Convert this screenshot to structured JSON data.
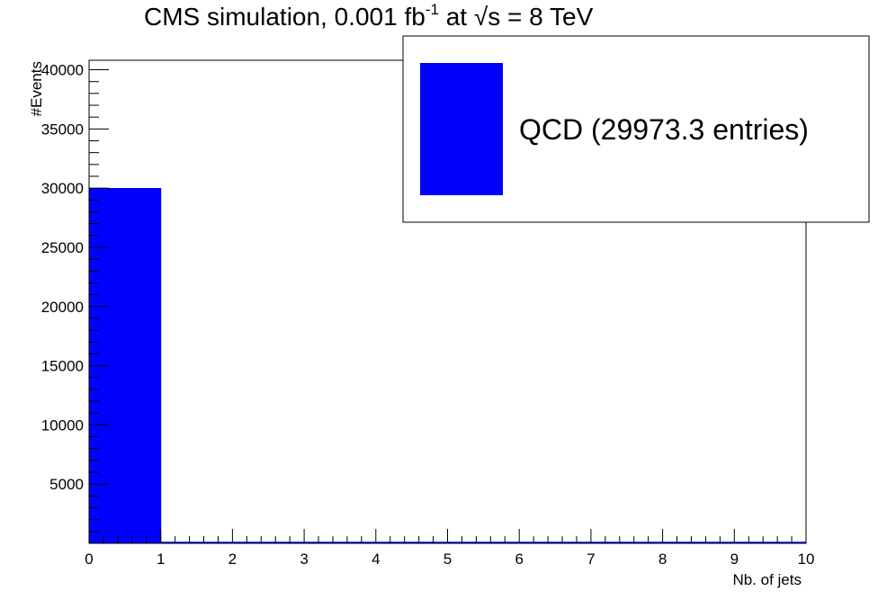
{
  "chart_data": {
    "type": "bar",
    "title": {
      "prefix": "CMS simulation, 0.001 fb",
      "superscript": "-1",
      "middle": " at ",
      "sqrt_symbol": "√",
      "sqrt_arg": "s",
      "suffix": " = 8 TeV"
    },
    "xlabel": "Nb. of jets",
    "ylabel": "#Events",
    "xlim": [
      0,
      10
    ],
    "ylim": [
      0,
      40800
    ],
    "x_ticks": [
      "0",
      "1",
      "2",
      "3",
      "4",
      "5",
      "6",
      "7",
      "8",
      "9",
      "10"
    ],
    "y_ticks": [
      {
        "value": 5000,
        "label": "5000"
      },
      {
        "value": 10000,
        "label": "10000"
      },
      {
        "value": 15000,
        "label": "15000"
      },
      {
        "value": 20000,
        "label": "20000"
      },
      {
        "value": 25000,
        "label": "25000"
      },
      {
        "value": 30000,
        "label": "30000"
      },
      {
        "value": 35000,
        "label": "35000"
      },
      {
        "value": 40000,
        "label": "40000"
      }
    ],
    "bin_edges": [
      0,
      1,
      2,
      3,
      4,
      5,
      6,
      7,
      8,
      9,
      10
    ],
    "series": [
      {
        "name": "QCD (29973.3 entries)",
        "color": "#0000ff",
        "values": [
          29973.3,
          0,
          0,
          0,
          0,
          0,
          0,
          0,
          0,
          0
        ]
      }
    ],
    "legend": "top-right",
    "grid": false
  }
}
